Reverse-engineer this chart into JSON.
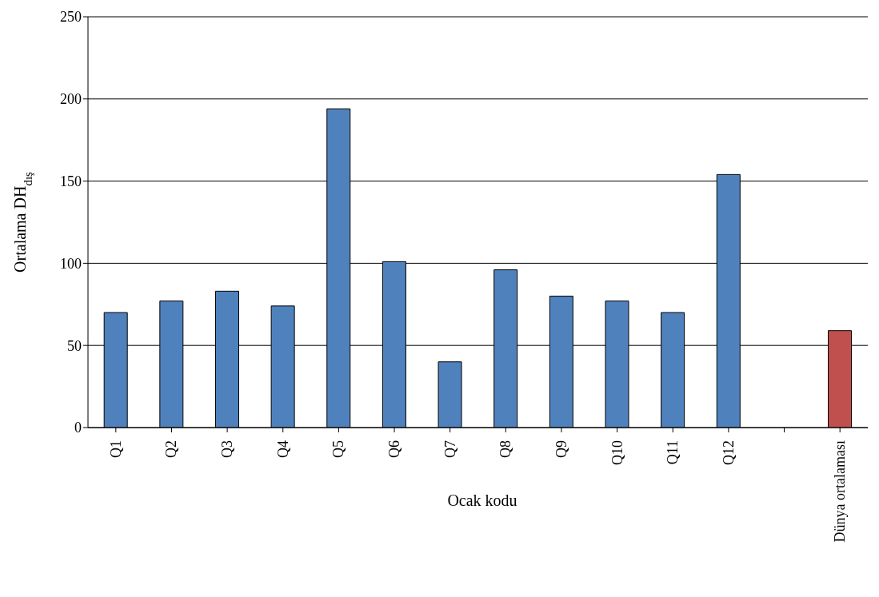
{
  "chart_data": {
    "type": "bar",
    "xlabel": "Ocak kodu",
    "ylabel": "Ortalama DH$_{dış}$",
    "categories": [
      "Q1",
      "Q2",
      "Q3",
      "Q4",
      "Q5",
      "Q6",
      "Q7",
      "Q8",
      "Q9",
      "Q10",
      "Q11",
      "Q12",
      null,
      "Dünya ortalaması"
    ],
    "values": [
      70,
      77,
      83,
      74,
      194,
      101,
      40,
      96,
      80,
      77,
      70,
      154,
      null,
      59
    ],
    "colors": [
      "#4f81bd",
      "#4f81bd",
      "#4f81bd",
      "#4f81bd",
      "#4f81bd",
      "#4f81bd",
      "#4f81bd",
      "#4f81bd",
      "#4f81bd",
      "#4f81bd",
      "#4f81bd",
      "#4f81bd",
      "#4f81bd",
      "#c0504d"
    ],
    "ylim": [
      0,
      250
    ],
    "yticks": [
      0,
      50,
      100,
      150,
      200,
      250
    ],
    "grid": "y"
  }
}
